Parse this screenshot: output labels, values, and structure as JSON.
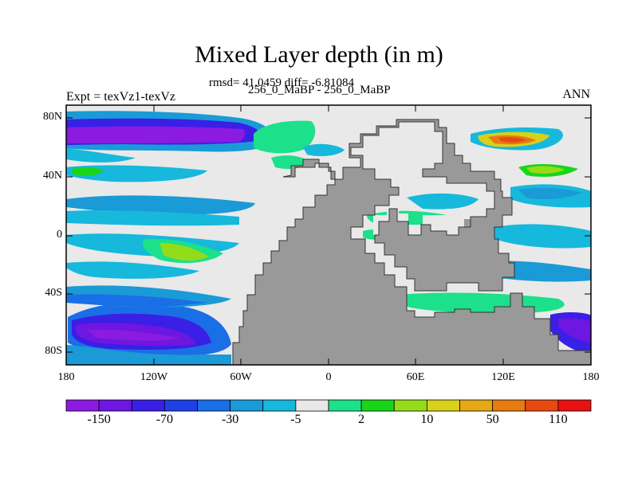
{
  "title": "Mixed Layer depth (in m)",
  "stats_text": "rmsd= 41.0459 diff= -6.81084",
  "case_text": "256_0_MaBP - 256_0_MaBP",
  "expt_text": "Expt = texVz1-texVz",
  "period_text": "ANN",
  "lat_ticks": [
    "80N",
    "40N",
    "0",
    "40S",
    "80S"
  ],
  "lon_ticks": [
    "180",
    "120W",
    "60W",
    "0",
    "60E",
    "120E",
    "180"
  ],
  "colorbar": {
    "colors": [
      "#8b1be0",
      "#6e17e0",
      "#3a1fe6",
      "#1f40e6",
      "#1a6ee6",
      "#1a9ad6",
      "#16b8dc",
      "#e8e8e8",
      "#1ce08a",
      "#1ad41a",
      "#94dc1a",
      "#d8d01a",
      "#e6a816",
      "#e67b12",
      "#e64a10",
      "#e81212"
    ],
    "labels": [
      "-150",
      "-70",
      "-30",
      "-5",
      "2",
      "10",
      "50",
      "110"
    ]
  },
  "land_color": "#999999",
  "ocean_background": "#e9e9e9"
}
